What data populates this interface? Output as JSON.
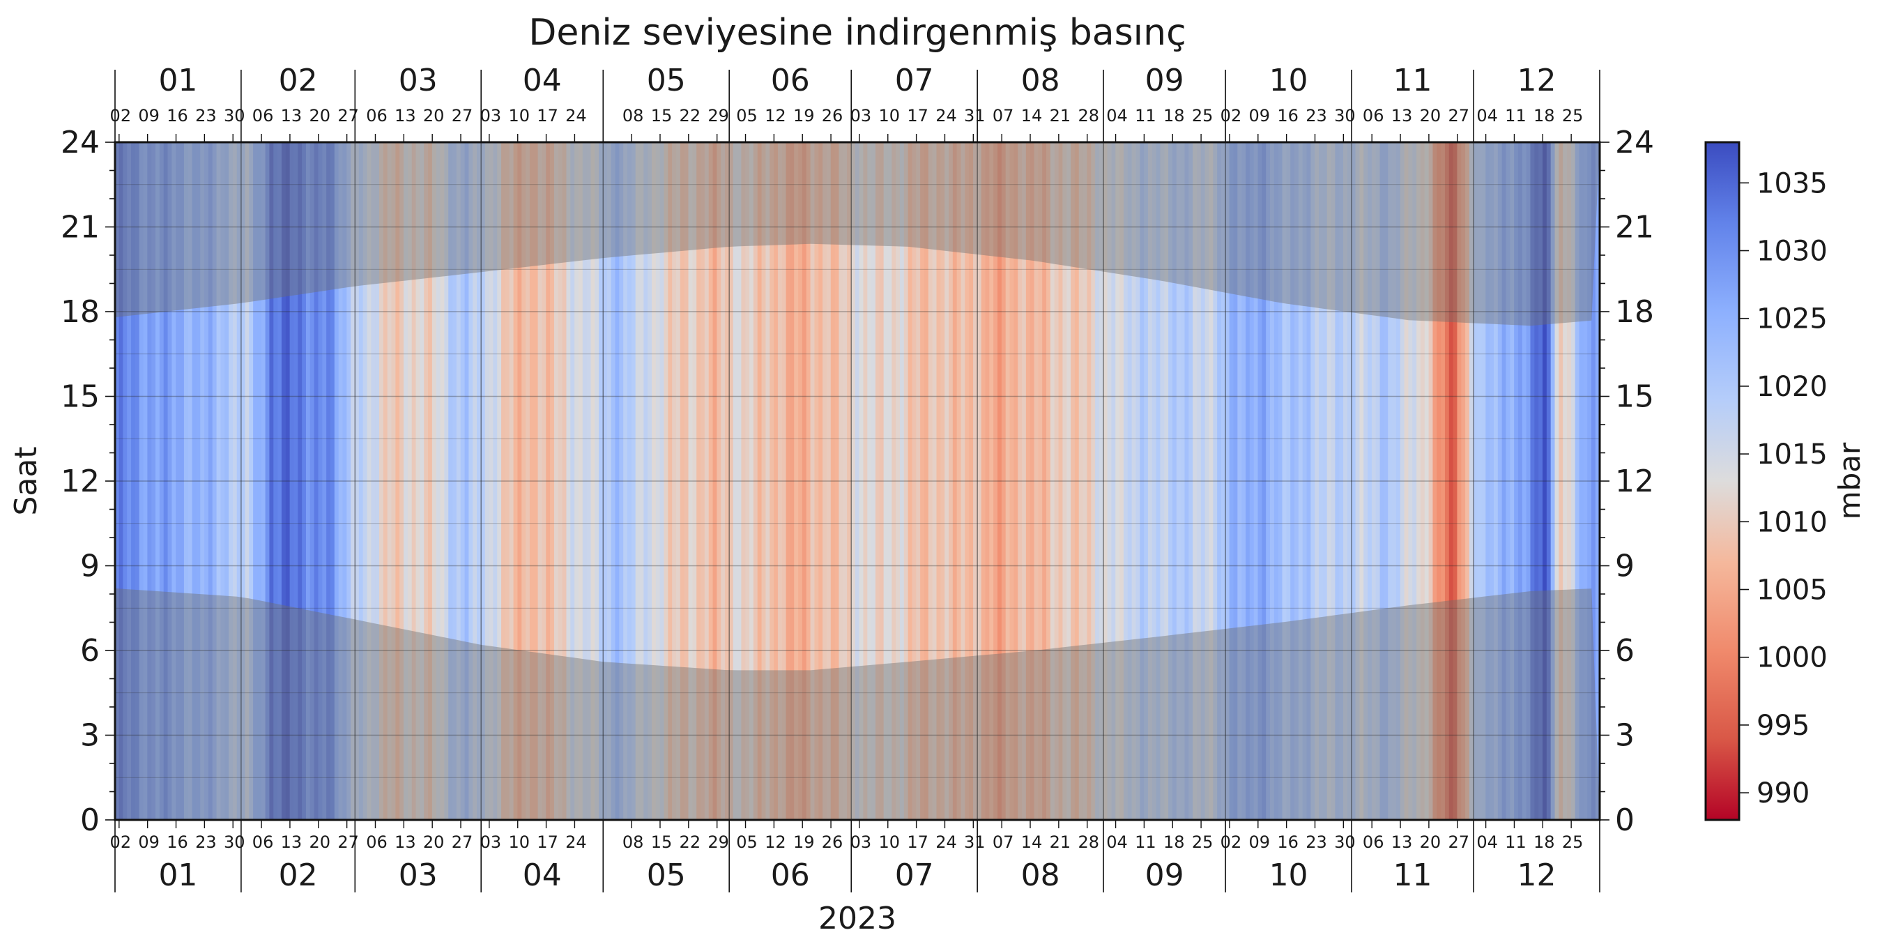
{
  "chart_data": {
    "type": "heatmap",
    "title": "Deniz seviyesine indirgenmiş basınç",
    "xlabel": "2023",
    "ylabel": "Saat",
    "colorbar_label": "mbar",
    "year": 2023,
    "ylim": [
      0,
      24
    ],
    "y_ticks": [
      "0",
      "3",
      "6",
      "9",
      "12",
      "15",
      "18",
      "21",
      "24"
    ],
    "month_labels": [
      "01",
      "02",
      "03",
      "04",
      "05",
      "06",
      "07",
      "08",
      "09",
      "10",
      "11",
      "12"
    ],
    "day_tick_labels": [
      [
        "02",
        "09",
        "16",
        "23",
        "30"
      ],
      [
        "06",
        "13",
        "20",
        "27"
      ],
      [
        "06",
        "13",
        "20",
        "27"
      ],
      [
        "03",
        "10",
        "17",
        "24"
      ],
      [
        "08",
        "15",
        "22",
        "29"
      ],
      [
        "05",
        "12",
        "19",
        "26"
      ],
      [
        "03",
        "10",
        "17",
        "24",
        "31"
      ],
      [
        "07",
        "14",
        "21",
        "28"
      ],
      [
        "04",
        "11",
        "18",
        "25"
      ],
      [
        "02",
        "09",
        "16",
        "23",
        "30"
      ],
      [
        "06",
        "13",
        "20",
        "27"
      ],
      [
        "04",
        "11",
        "18",
        "25"
      ]
    ],
    "colorscale": "coolwarm (reversed: low pressure red, high pressure blue)",
    "color_range": [
      988,
      1038
    ],
    "colorbar_ticks": [
      "990",
      "995",
      "1000",
      "1005",
      "1010",
      "1015",
      "1020",
      "1025",
      "1030",
      "1035"
    ],
    "grid": true,
    "night_shading": true,
    "daily_mean_pressure_mbar": [
      {
        "date": "2023-01-01",
        "value": 1031
      },
      {
        "date": "2023-01-10",
        "value": 1028
      },
      {
        "date": "2023-01-20",
        "value": 1025
      },
      {
        "date": "2023-01-28",
        "value": 1022
      },
      {
        "date": "2023-02-02",
        "value": 1016
      },
      {
        "date": "2023-02-08",
        "value": 1034
      },
      {
        "date": "2023-02-14",
        "value": 1033
      },
      {
        "date": "2023-02-22",
        "value": 1030
      },
      {
        "date": "2023-03-01",
        "value": 1018
      },
      {
        "date": "2023-03-10",
        "value": 1010
      },
      {
        "date": "2023-03-20",
        "value": 1012
      },
      {
        "date": "2023-03-28",
        "value": 1022
      },
      {
        "date": "2023-04-05",
        "value": 1012
      },
      {
        "date": "2023-04-12",
        "value": 1006
      },
      {
        "date": "2023-04-20",
        "value": 1011
      },
      {
        "date": "2023-04-28",
        "value": 1016
      },
      {
        "date": "2023-05-05",
        "value": 1022
      },
      {
        "date": "2023-05-12",
        "value": 1014
      },
      {
        "date": "2023-05-20",
        "value": 1010
      },
      {
        "date": "2023-05-28",
        "value": 1008
      },
      {
        "date": "2023-06-05",
        "value": 1012
      },
      {
        "date": "2023-06-12",
        "value": 1007
      },
      {
        "date": "2023-06-20",
        "value": 1006
      },
      {
        "date": "2023-06-28",
        "value": 1010
      },
      {
        "date": "2023-07-05",
        "value": 1013
      },
      {
        "date": "2023-07-12",
        "value": 1011
      },
      {
        "date": "2023-07-20",
        "value": 1008
      },
      {
        "date": "2023-07-28",
        "value": 1009
      },
      {
        "date": "2023-08-05",
        "value": 1005
      },
      {
        "date": "2023-08-12",
        "value": 1007
      },
      {
        "date": "2023-08-20",
        "value": 1009
      },
      {
        "date": "2023-08-28",
        "value": 1011
      },
      {
        "date": "2023-09-05",
        "value": 1016
      },
      {
        "date": "2023-09-12",
        "value": 1018
      },
      {
        "date": "2023-09-20",
        "value": 1019
      },
      {
        "date": "2023-09-28",
        "value": 1016
      },
      {
        "date": "2023-10-03",
        "value": 1026
      },
      {
        "date": "2023-10-10",
        "value": 1025
      },
      {
        "date": "2023-10-18",
        "value": 1021
      },
      {
        "date": "2023-10-26",
        "value": 1018
      },
      {
        "date": "2023-11-03",
        "value": 1017
      },
      {
        "date": "2023-11-10",
        "value": 1020
      },
      {
        "date": "2023-11-18",
        "value": 1012
      },
      {
        "date": "2023-11-22",
        "value": 1003
      },
      {
        "date": "2023-11-26",
        "value": 995
      },
      {
        "date": "2023-12-02",
        "value": 1022
      },
      {
        "date": "2023-12-10",
        "value": 1024
      },
      {
        "date": "2023-12-18",
        "value": 1037
      },
      {
        "date": "2023-12-22",
        "value": 1009
      },
      {
        "date": "2023-12-28",
        "value": 1026
      }
    ],
    "sunrise_hour": [
      {
        "date": "2023-01-01",
        "value": 8.2
      },
      {
        "date": "2023-02-01",
        "value": 7.9
      },
      {
        "date": "2023-03-01",
        "value": 7.1
      },
      {
        "date": "2023-04-01",
        "value": 6.2
      },
      {
        "date": "2023-05-01",
        "value": 5.6
      },
      {
        "date": "2023-06-01",
        "value": 5.3
      },
      {
        "date": "2023-06-21",
        "value": 5.3
      },
      {
        "date": "2023-07-15",
        "value": 5.6
      },
      {
        "date": "2023-08-15",
        "value": 6.0
      },
      {
        "date": "2023-09-15",
        "value": 6.5
      },
      {
        "date": "2023-10-15",
        "value": 7.0
      },
      {
        "date": "2023-11-15",
        "value": 7.6
      },
      {
        "date": "2023-12-15",
        "value": 8.1
      },
      {
        "date": "2023-12-31",
        "value": 8.2
      }
    ],
    "sunset_hour": [
      {
        "date": "2023-01-01",
        "value": 17.8
      },
      {
        "date": "2023-02-01",
        "value": 18.3
      },
      {
        "date": "2023-03-01",
        "value": 18.9
      },
      {
        "date": "2023-04-01",
        "value": 19.4
      },
      {
        "date": "2023-05-01",
        "value": 19.9
      },
      {
        "date": "2023-06-01",
        "value": 20.3
      },
      {
        "date": "2023-06-21",
        "value": 20.4
      },
      {
        "date": "2023-07-15",
        "value": 20.3
      },
      {
        "date": "2023-08-15",
        "value": 19.8
      },
      {
        "date": "2023-09-15",
        "value": 19.1
      },
      {
        "date": "2023-10-15",
        "value": 18.3
      },
      {
        "date": "2023-11-15",
        "value": 17.7
      },
      {
        "date": "2023-12-15",
        "value": 17.5
      },
      {
        "date": "2023-12-31",
        "value": 17.7
      }
    ]
  }
}
